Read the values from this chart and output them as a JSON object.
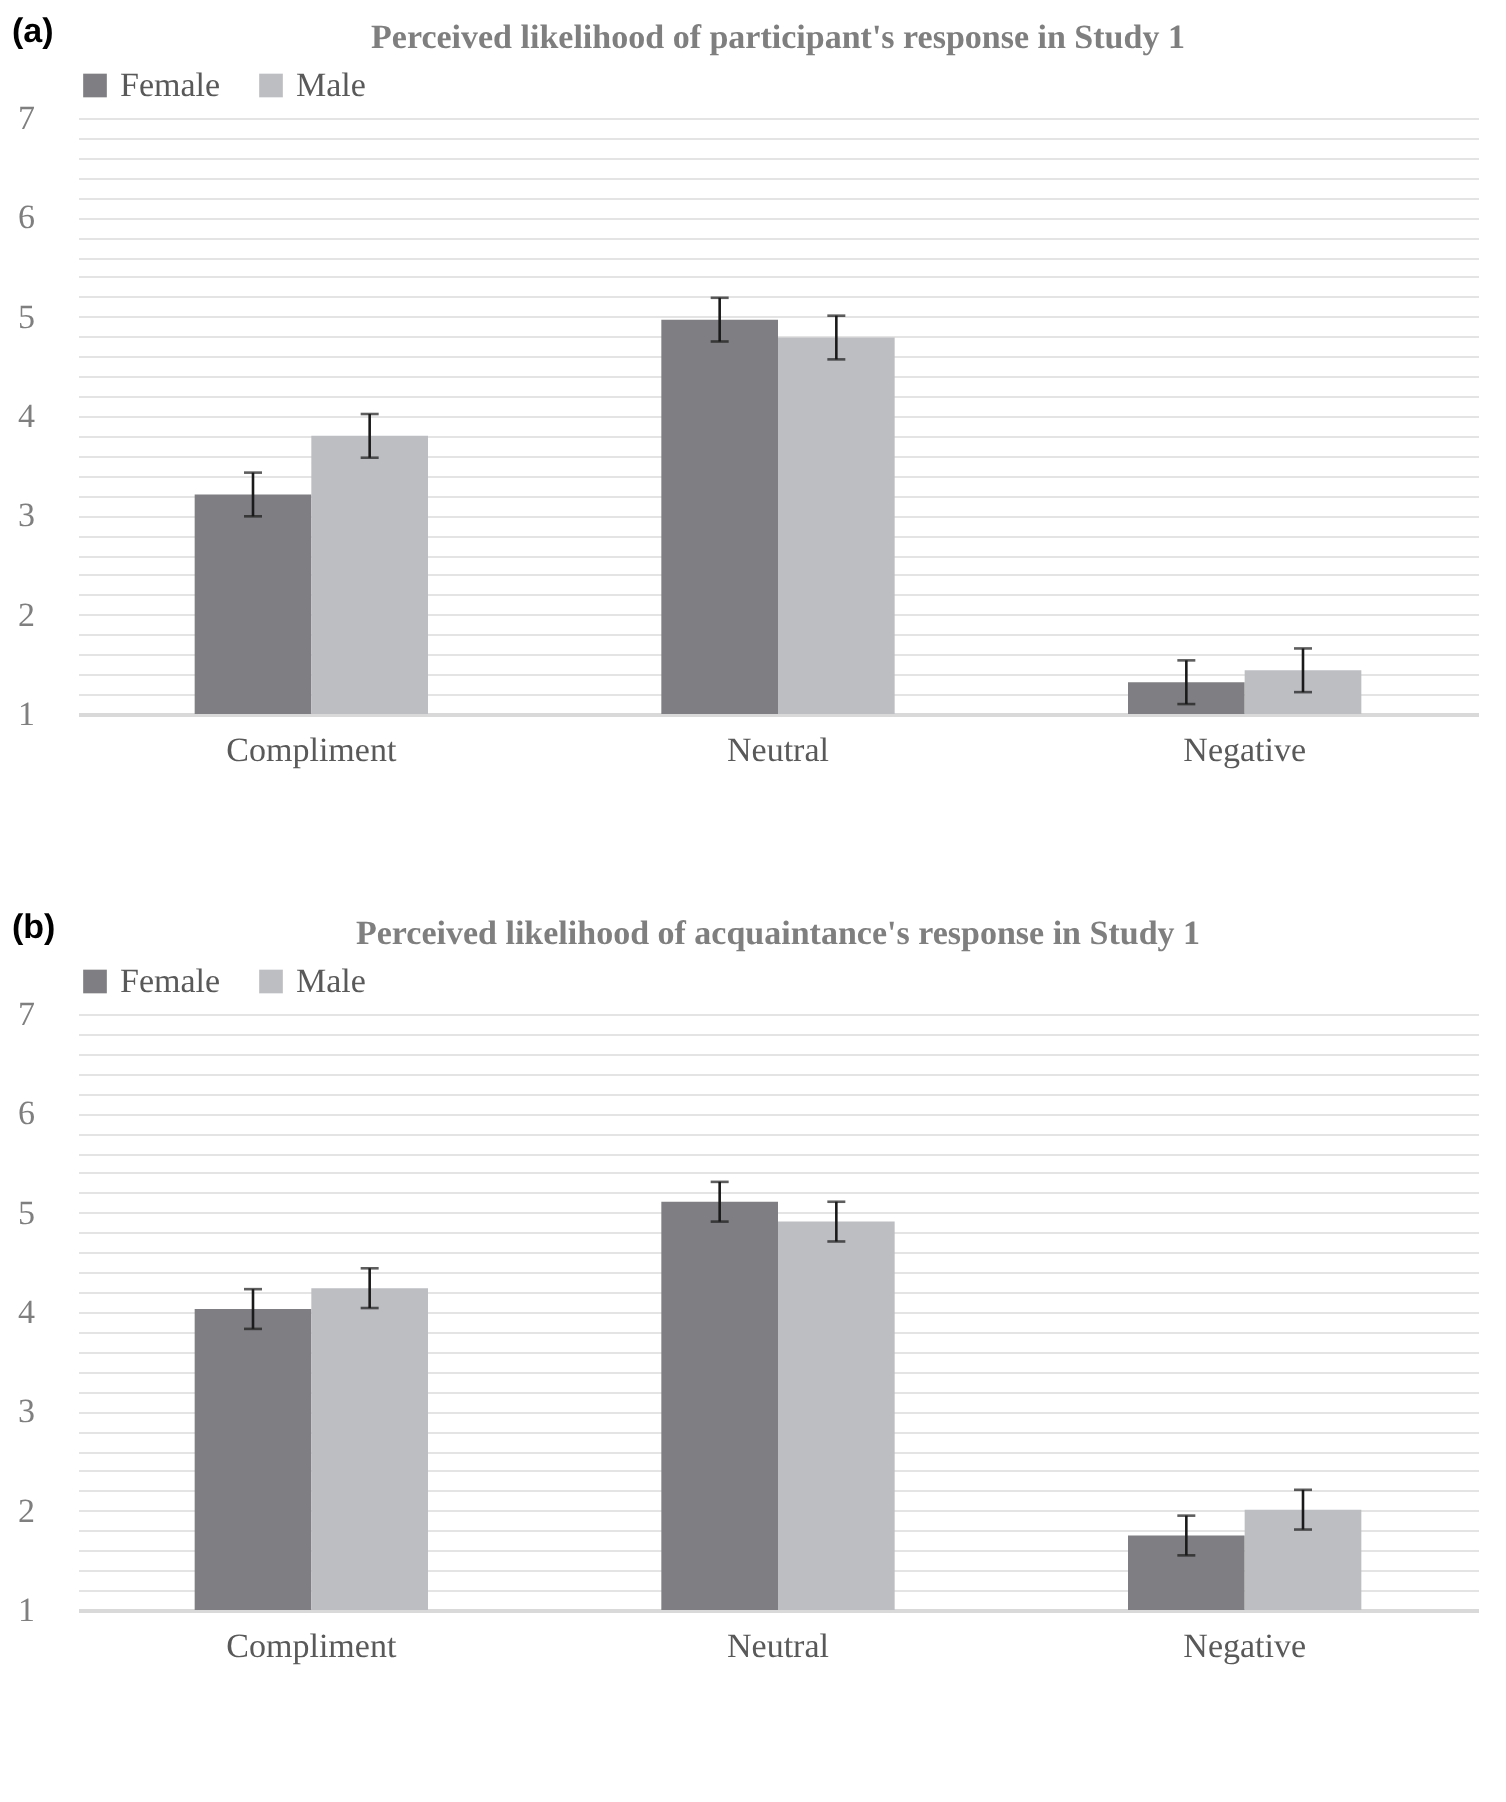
{
  "chart_data": [
    {
      "type": "bar",
      "title": "Perceived likelihood of participant's response in Study 1",
      "annotations": [
        "(a)"
      ],
      "categories": [
        "Compliment",
        "Neutral",
        "Negative"
      ],
      "series": [
        {
          "name": "Female",
          "color": "#7f7f83",
          "values": [
            3.21,
            4.97,
            1.32
          ],
          "errors": [
            0.22,
            0.22,
            0.22
          ]
        },
        {
          "name": "Male",
          "color": "#bdbec2",
          "values": [
            3.8,
            4.79,
            1.44
          ],
          "errors": [
            0.22,
            0.22,
            0.22
          ]
        }
      ],
      "ylim": [
        1,
        7
      ],
      "yticks": [
        1,
        {
          "value": 1.2,
          "label": null
        },
        {
          "value": 1.4,
          "label": null
        },
        {
          "value": 1.6,
          "label": null
        },
        {
          "value": 1.8,
          "label": null
        },
        2,
        {
          "value": 2.2,
          "label": null
        },
        {
          "value": 2.4,
          "label": null
        },
        {
          "value": 2.6,
          "label": null
        },
        {
          "value": 2.8,
          "label": null
        },
        3,
        {
          "value": 3.2,
          "label": null
        },
        {
          "value": 3.4,
          "label": null
        },
        {
          "value": 3.6,
          "label": null
        },
        {
          "value": 3.8,
          "label": null
        },
        4,
        {
          "value": 4.2,
          "label": null
        },
        {
          "value": 4.4,
          "label": null
        },
        {
          "value": 4.6,
          "label": null
        },
        {
          "value": 4.8,
          "label": null
        },
        5,
        {
          "value": 5.2,
          "label": null
        },
        {
          "value": 5.4,
          "label": null
        },
        {
          "value": 5.6,
          "label": null
        },
        {
          "value": 5.8,
          "label": null
        },
        6,
        {
          "value": 6.2,
          "label": null
        },
        {
          "value": 6.4,
          "label": null
        },
        {
          "value": 6.6,
          "label": null
        },
        {
          "value": 6.8,
          "label": null
        },
        7
      ],
      "grid": "y",
      "legend": "top"
    },
    {
      "type": "bar",
      "title": "Perceived likelihood of acquaintance's response in Study 1",
      "annotations": [
        "(b)"
      ],
      "categories": [
        "Compliment",
        "Neutral",
        "Negative"
      ],
      "series": [
        {
          "name": "Female",
          "color": "#7f7f83",
          "values": [
            4.03,
            5.11,
            1.75
          ],
          "errors": [
            0.2,
            0.2,
            0.2
          ]
        },
        {
          "name": "Male",
          "color": "#bdbec2",
          "values": [
            4.24,
            4.91,
            2.01
          ],
          "errors": [
            0.2,
            0.2,
            0.2
          ]
        }
      ],
      "ylim": [
        1,
        7
      ],
      "yticks": [
        1,
        {
          "value": 1.2,
          "label": null
        },
        {
          "value": 1.4,
          "label": null
        },
        {
          "value": 1.6,
          "label": null
        },
        {
          "value": 1.8,
          "label": null
        },
        2,
        {
          "value": 2.2,
          "label": null
        },
        {
          "value": 2.4,
          "label": null
        },
        {
          "value": 2.6,
          "label": null
        },
        {
          "value": 2.8,
          "label": null
        },
        3,
        {
          "value": 3.2,
          "label": null
        },
        {
          "value": 3.4,
          "label": null
        },
        {
          "value": 3.6,
          "label": null
        },
        {
          "value": 3.8,
          "label": null
        },
        4,
        {
          "value": 4.2,
          "label": null
        },
        {
          "value": 4.4,
          "label": null
        },
        {
          "value": 4.6,
          "label": null
        },
        {
          "value": 4.8,
          "label": null
        },
        5,
        {
          "value": 5.2,
          "label": null
        },
        {
          "value": 5.4,
          "label": null
        },
        {
          "value": 5.6,
          "label": null
        },
        {
          "value": 5.8,
          "label": null
        },
        6,
        {
          "value": 6.2,
          "label": null
        },
        {
          "value": 6.4,
          "label": null
        },
        {
          "value": 6.6,
          "label": null
        },
        {
          "value": 6.8,
          "label": null
        },
        7
      ],
      "grid": "y",
      "legend": "top"
    }
  ]
}
